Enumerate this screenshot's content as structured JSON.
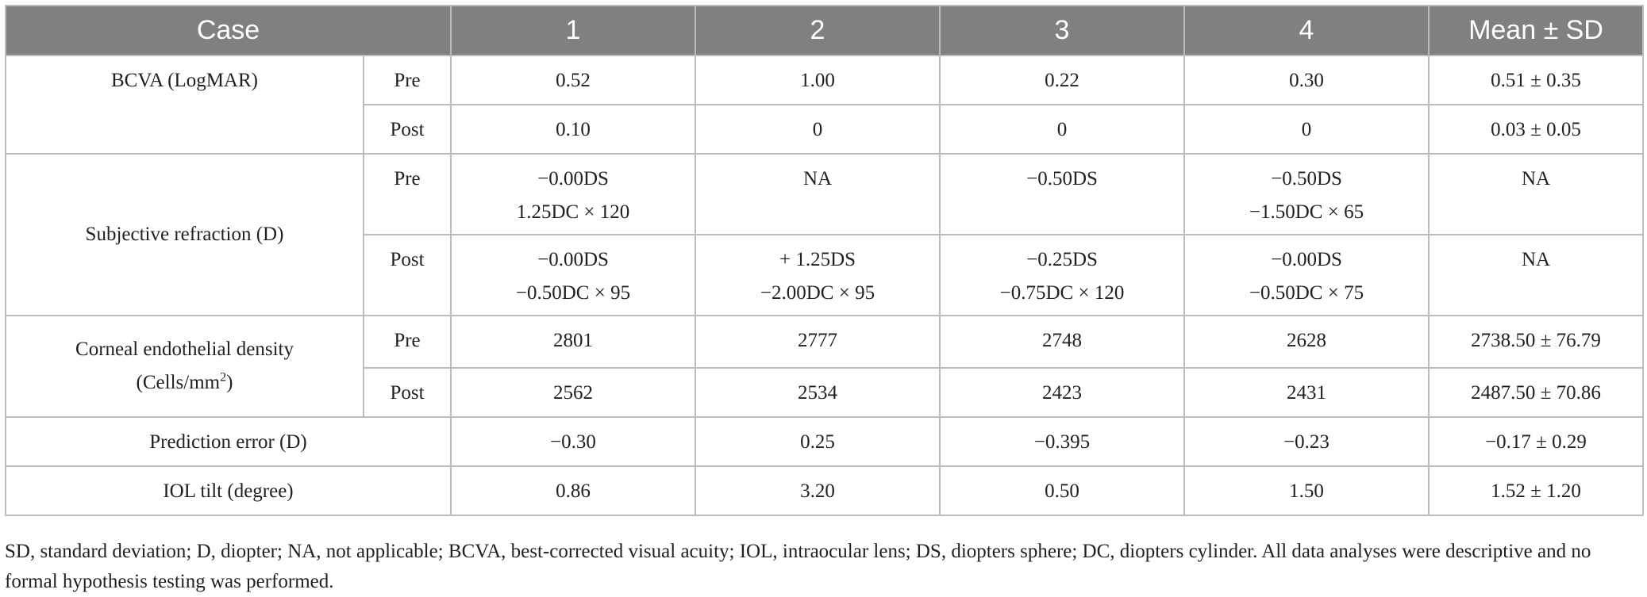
{
  "table": {
    "columns": [
      "Case",
      "1",
      "2",
      "3",
      "4",
      "Mean ± SD"
    ],
    "rows": {
      "bcva": {
        "label": "BCVA (LogMAR)",
        "pre": {
          "timing": "Pre",
          "values": [
            "0.52",
            "1.00",
            "0.22",
            "0.30",
            "0.51 ± 0.35"
          ]
        },
        "post": {
          "timing": "Post",
          "values": [
            "0.10",
            "0",
            "0",
            "0",
            "0.03 ± 0.05"
          ]
        }
      },
      "refraction": {
        "label": "Subjective refraction (D)",
        "pre": {
          "timing": "Pre",
          "values": [
            [
              "−0.00DS",
              "1.25DC × 120"
            ],
            [
              "NA"
            ],
            [
              "−0.50DS"
            ],
            [
              "−0.50DS",
              "−1.50DC × 65"
            ],
            [
              "NA"
            ]
          ]
        },
        "post": {
          "timing": "Post",
          "values": [
            [
              "−0.00DS",
              "−0.50DC × 95"
            ],
            [
              "+ 1.25DS",
              "−2.00DC × 95"
            ],
            [
              "−0.25DS",
              "−0.75DC × 120"
            ],
            [
              "−0.00DS",
              "−0.50DC × 75"
            ],
            [
              "NA"
            ]
          ]
        }
      },
      "endothelial": {
        "label_line1": "Corneal endothelial density",
        "label_line2_prefix": "(Cells/mm",
        "label_line2_sup": "2",
        "label_line2_suffix": ")",
        "pre": {
          "timing": "Pre",
          "values": [
            "2801",
            "2777",
            "2748",
            "2628",
            "2738.50 ± 76.79"
          ]
        },
        "post": {
          "timing": "Post",
          "values": [
            "2562",
            "2534",
            "2423",
            "2431",
            "2487.50 ± 70.86"
          ]
        }
      },
      "prediction": {
        "label": "Prediction error (D)",
        "values": [
          "−0.30",
          "0.25",
          "−0.395",
          "−0.23",
          "−0.17 ± 0.29"
        ]
      },
      "iol": {
        "label": "IOL tilt (degree)",
        "values": [
          "0.86",
          "3.20",
          "0.50",
          "1.50",
          "1.52 ± 1.20"
        ]
      }
    }
  },
  "footnote": {
    "line1": "SD, standard deviation; D, diopter; NA, not applicable; BCVA, best-corrected visual acuity; IOL, intraocular lens; DS, diopters sphere; DC, diopters cylinder. All data analyses were descriptive",
    "line2": "and no formal hypothesis testing was performed."
  }
}
